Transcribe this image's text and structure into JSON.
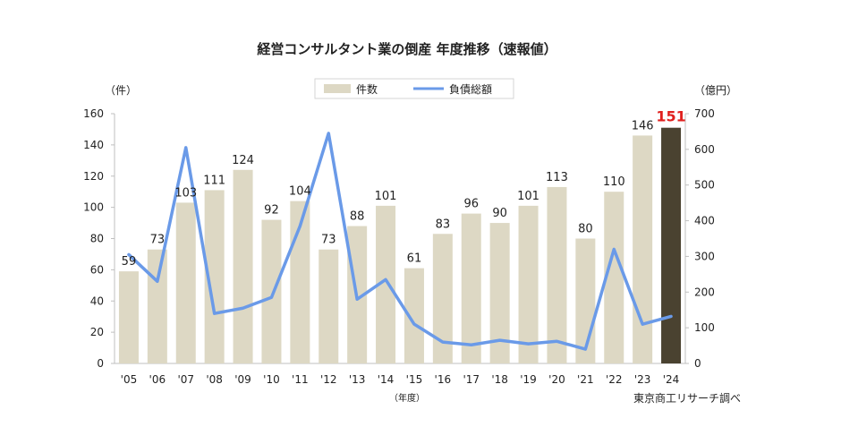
{
  "chart_data": {
    "type": "bar+line",
    "title": "経営コンサルタント業の倒産 年度推移（速報値）",
    "left_unit": "（件）",
    "right_unit": "（億円）",
    "x_unit": "（年度）",
    "source": "東京商工リサーチ調べ",
    "highlight_color": "#e0201e",
    "categories": [
      "'05",
      "'06",
      "'07",
      "'08",
      "'09",
      "'10",
      "'11",
      "'12",
      "'13",
      "'14",
      "'15",
      "'16",
      "'17",
      "'18",
      "'19",
      "'20",
      "'21",
      "'22",
      "'23",
      "'24"
    ],
    "left_ticks": [
      0,
      20,
      40,
      60,
      80,
      100,
      120,
      140,
      160
    ],
    "right_ticks": [
      0,
      100,
      200,
      300,
      400,
      500,
      600,
      700
    ],
    "ylim_left": [
      0,
      160
    ],
    "ylim_right": [
      0,
      700
    ],
    "series": [
      {
        "name": "件数",
        "type": "bar",
        "axis": "left",
        "color": "#ddd8c4",
        "highlight_color": "#4a4230",
        "values": [
          59,
          73,
          103,
          111,
          124,
          92,
          104,
          73,
          88,
          101,
          61,
          83,
          96,
          90,
          101,
          113,
          80,
          110,
          146,
          151
        ]
      },
      {
        "name": "負債総額",
        "type": "line",
        "axis": "right",
        "color": "#6a9ae8",
        "values": [
          305,
          230,
          605,
          140,
          155,
          185,
          385,
          645,
          180,
          235,
          110,
          60,
          52,
          65,
          55,
          62,
          40,
          320,
          110,
          132
        ]
      }
    ]
  }
}
